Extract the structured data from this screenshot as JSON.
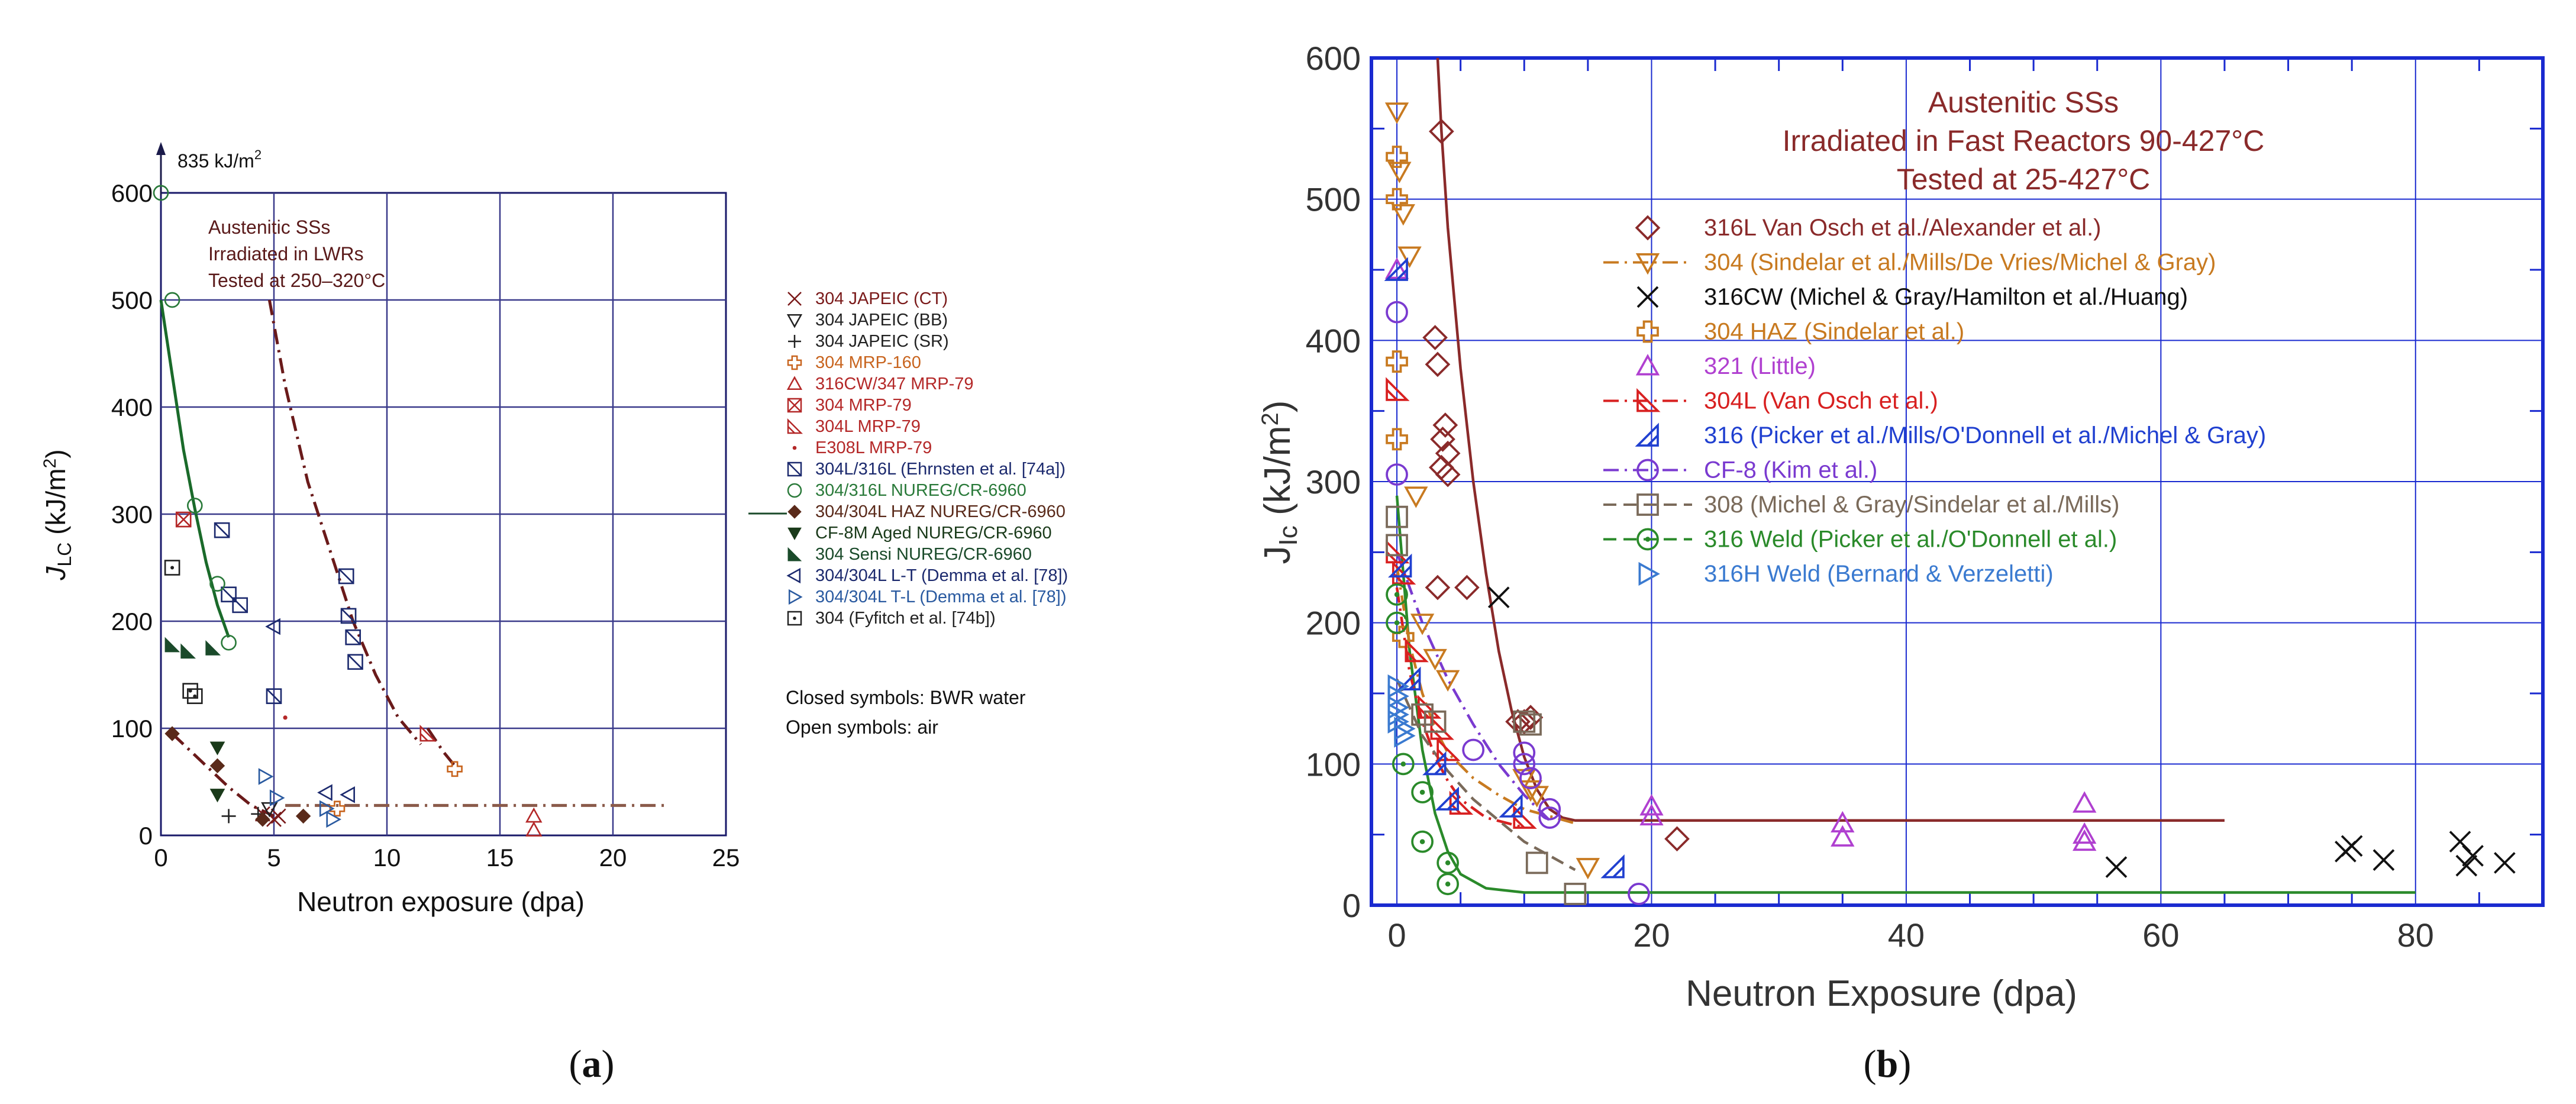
{
  "chart_data": [
    {
      "type": "scatter",
      "panel_label": "(a)",
      "panel_letter": "a",
      "xlabel": "Neutron exposure (dpa)",
      "ylabel_main": "J",
      "ylabel_sub": "LC",
      "ylabel_units": "(kJ/m",
      "ylabel_sup": "2",
      "ylabel_close": ")",
      "xlim": [
        0,
        25
      ],
      "ylim": [
        0,
        600
      ],
      "xticks": [
        0,
        5,
        10,
        15,
        20,
        25
      ],
      "yticks": [
        0,
        100,
        200,
        300,
        400,
        500,
        600
      ],
      "offscale_label": "835 kJ/m",
      "offscale_sup": "2",
      "annotation": [
        "Austenitic SSs",
        "Irradiated in LWRs",
        "Tested at 250–320°C"
      ],
      "notes": [
        "Closed symbols: BWR water",
        "Open symbols: air"
      ],
      "legend": [
        {
          "label": "304 JAPEIC (CT)",
          "color": "#7a1a1a",
          "marker": "x"
        },
        {
          "label": "304 JAPEIC (BB)",
          "color": "#222222",
          "marker": "tri-down"
        },
        {
          "label": "304 JAPEIC (SR)",
          "color": "#222222",
          "marker": "plus"
        },
        {
          "label": "304 MRP-160",
          "color": "#c8641e",
          "marker": "cross-open"
        },
        {
          "label": "316CW/347 MRP-79",
          "color": "#b42828",
          "marker": "tri-up"
        },
        {
          "label": "304 MRP-79",
          "color": "#b42828",
          "marker": "box-x"
        },
        {
          "label": "304L MRP-79",
          "color": "#b42828",
          "marker": "half-tri"
        },
        {
          "label": "E308L MRP-79",
          "color": "#b42828",
          "marker": "dot"
        },
        {
          "label": "304L/316L (Ehrnsten et al. [74a])",
          "color": "#1c2a6e",
          "marker": "box-slash"
        },
        {
          "label": "304/316L NUREG/CR-6960",
          "color": "#2a7a3a",
          "marker": "circle"
        },
        {
          "label": "304/304L HAZ NUREG/CR-6960",
          "color": "#5a2a1a",
          "marker": "diamond-fill"
        },
        {
          "label": "CF-8M Aged NUREG/CR-6960",
          "color": "#1a3a1a",
          "marker": "tri-down-fill"
        },
        {
          "label": "304 Sensi NUREG/CR-6960",
          "color": "#1a4a2a",
          "marker": "corner-fill"
        },
        {
          "label": "304/304L L-T (Demma et al. [78])",
          "color": "#1c2a6e",
          "marker": "tri-left"
        },
        {
          "label": "304/304L T-L (Demma et al. [78])",
          "color": "#2a5aa0",
          "marker": "tri-right"
        },
        {
          "label": "304 (Fyfitch et al. [74b])",
          "color": "#222222",
          "marker": "box-dot"
        }
      ],
      "series": [
        {
          "name": "304 JAPEIC (CT)",
          "x": [
            4.5,
            5.0,
            5.2
          ],
          "y": [
            20,
            15,
            18
          ]
        },
        {
          "name": "304 JAPEIC (BB)",
          "x": [
            4.8
          ],
          "y": [
            25
          ]
        },
        {
          "name": "304 JAPEIC (SR)",
          "x": [
            3.0,
            4.3
          ],
          "y": [
            18,
            20
          ]
        },
        {
          "name": "304 MRP-160",
          "x": [
            7.8,
            13.0
          ],
          "y": [
            25,
            62
          ]
        },
        {
          "name": "316CW/347 MRP-79",
          "x": [
            16.5,
            16.5
          ],
          "y": [
            18,
            5
          ]
        },
        {
          "name": "304 MRP-79",
          "x": [
            1.0
          ],
          "y": [
            295
          ]
        },
        {
          "name": "304L MRP-79",
          "x": [
            11.8
          ],
          "y": [
            95
          ]
        },
        {
          "name": "E308L MRP-79",
          "x": [
            5.5
          ],
          "y": [
            110
          ]
        },
        {
          "name": "304L/316L (Ehrnsten et al. [74a])",
          "x": [
            2.7,
            3.0,
            3.5,
            5.0,
            8.2,
            8.3,
            8.5,
            8.6
          ],
          "y": [
            285,
            225,
            215,
            130,
            242,
            205,
            185,
            162
          ]
        },
        {
          "name": "304/316L NUREG/CR-6960",
          "x": [
            0.0,
            0.5,
            1.5,
            2.5,
            3.0
          ],
          "y": [
            600,
            500,
            308,
            235,
            180
          ]
        },
        {
          "name": "304/304L HAZ NUREG/CR-6960",
          "x": [
            0.5,
            2.5,
            4.5,
            6.3
          ],
          "y": [
            95,
            65,
            15,
            18
          ]
        },
        {
          "name": "CF-8M Aged NUREG/CR-6960",
          "x": [
            2.5,
            2.5
          ],
          "y": [
            82,
            38
          ]
        },
        {
          "name": "304 Sensi NUREG/CR-6960",
          "x": [
            0.5,
            1.2,
            2.3
          ],
          "y": [
            178,
            172,
            175
          ]
        },
        {
          "name": "304/304L L-T (Demma et al. [78])",
          "x": [
            5.0,
            7.3,
            8.3
          ],
          "y": [
            195,
            40,
            38
          ]
        },
        {
          "name": "304/304L T-L (Demma et al. [78])",
          "x": [
            4.6,
            5.1,
            7.3,
            7.6
          ],
          "y": [
            55,
            35,
            25,
            15
          ]
        },
        {
          "name": "304 (Fyfitch et al. [74b])",
          "x": [
            0.5,
            1.3,
            1.5
          ],
          "y": [
            250,
            135,
            130
          ]
        }
      ]
    },
    {
      "type": "scatter",
      "panel_label": "(b)",
      "panel_letter": "b",
      "xlabel": "Neutron Exposure (dpa)",
      "ylabel_main": "J",
      "ylabel_sub": "Ic",
      "ylabel_units": "(kJ/m",
      "ylabel_sup": "2",
      "ylabel_close": ")",
      "xlim": [
        -2,
        90
      ],
      "ylim": [
        0,
        600
      ],
      "xticks": [
        0,
        20,
        40,
        60,
        80
      ],
      "yticks": [
        0,
        100,
        200,
        300,
        400,
        500,
        600
      ],
      "title": [
        "Austenitic SSs",
        "Irradiated in Fast Reactors 90-427°C",
        "Tested at 25-427°C"
      ],
      "legend": [
        {
          "label": "316L Van Osch et al./Alexander et al.)",
          "color": "#8a2a2a",
          "marker": "diamond",
          "line": "none"
        },
        {
          "label": "304 (Sindelar et al./Mills/De Vries/Michel & Gray)",
          "color": "#c87a20",
          "marker": "tri-down",
          "line": "dashdot"
        },
        {
          "label": "316CW (Michel & Gray/Hamilton et al./Huang)",
          "color": "#111111",
          "marker": "x",
          "line": "none"
        },
        {
          "label": "304 HAZ (Sindelar et al.)",
          "color": "#c87a20",
          "marker": "plus-open",
          "line": "none"
        },
        {
          "label": "321 (Little)",
          "color": "#b040d0",
          "marker": "tri-up",
          "line": "none"
        },
        {
          "label": "304L (Van Osch et al.)",
          "color": "#d82020",
          "marker": "corner",
          "line": "solid-dot"
        },
        {
          "label": "316 (Picker et al./Mills/O'Donnell et al./Michel & Gray)",
          "color": "#2040d0",
          "marker": "corner-right",
          "line": "none"
        },
        {
          "label": "CF-8 (Kim et al.)",
          "color": "#7a3ad0",
          "marker": "circle",
          "line": "dashdot"
        },
        {
          "label": "308 (Michel & Gray/Sindelar et al./Mills)",
          "color": "#7a6a5a",
          "marker": "square",
          "line": "dash"
        },
        {
          "label": "316 Weld (Picker et al./O'Donnell et al.)",
          "color": "#2a8a2a",
          "marker": "circle-dot",
          "line": "dash"
        },
        {
          "label": "316H Weld (Bernard & Verzeletti)",
          "color": "#3a7ad0",
          "marker": "tri-right",
          "line": "none"
        }
      ],
      "series": [
        {
          "name": "316L",
          "x": [
            3.5,
            3.0,
            3.2,
            3.8,
            3.6,
            4.0,
            3.5,
            4.0,
            3.2,
            5.5,
            10,
            9.5,
            10.5,
            22
          ],
          "y": [
            548,
            402,
            383,
            340,
            330,
            320,
            310,
            305,
            225,
            225,
            130,
            130,
            133,
            47
          ]
        },
        {
          "name": "304",
          "x": [
            0,
            0.2,
            0.5,
            1.0,
            1.5,
            2,
            3,
            4,
            10,
            10.5,
            11,
            15
          ],
          "y": [
            562,
            520,
            490,
            460,
            290,
            200,
            175,
            160,
            90,
            82,
            78,
            27
          ]
        },
        {
          "name": "316CW",
          "x": [
            8,
            56.5,
            74.5,
            75,
            77.5,
            83.5,
            84,
            84.5,
            87
          ],
          "y": [
            218,
            27,
            38,
            42,
            32,
            45,
            28,
            35,
            30
          ]
        },
        {
          "name": "304 HAZ",
          "x": [
            0,
            0,
            0,
            0,
            0.5
          ],
          "y": [
            530,
            500,
            385,
            330,
            190
          ]
        },
        {
          "name": "321",
          "x": [
            0,
            20,
            20,
            35,
            35,
            54,
            54,
            54
          ],
          "y": [
            450,
            70,
            63,
            58,
            48,
            72,
            50,
            45
          ]
        },
        {
          "name": "304L",
          "x": [
            0,
            0,
            0.5,
            1.5,
            2.5,
            3.5,
            4,
            5,
            10
          ],
          "y": [
            365,
            250,
            235,
            180,
            140,
            125,
            110,
            72,
            62
          ]
        },
        {
          "name": "316",
          "x": [
            0,
            0.3,
            1.0,
            3.0,
            4.0,
            9.0,
            17.0
          ],
          "y": [
            450,
            240,
            160,
            100,
            75,
            70,
            27
          ]
        },
        {
          "name": "CF-8",
          "x": [
            0,
            0,
            6.0,
            10,
            10,
            10.5,
            12,
            12,
            19
          ],
          "y": [
            420,
            305,
            110,
            108,
            100,
            90,
            68,
            62,
            8
          ]
        },
        {
          "name": "308",
          "x": [
            0,
            0,
            2,
            3,
            10,
            10.5,
            11,
            14
          ],
          "y": [
            275,
            255,
            135,
            130,
            130,
            128,
            30,
            8
          ]
        },
        {
          "name": "316 Weld",
          "x": [
            0,
            0,
            0.5,
            2,
            2,
            4,
            4
          ],
          "y": [
            220,
            200,
            100,
            80,
            45,
            30,
            15
          ]
        },
        {
          "name": "316H Weld",
          "x": [
            0,
            0,
            0,
            0,
            0,
            0.5,
            0.5
          ],
          "y": [
            155,
            148,
            140,
            135,
            130,
            125,
            120
          ]
        }
      ],
      "fit_lines": [
        {
          "name": "316L fit",
          "color": "#8a2a2a",
          "style": "solid",
          "x": [
            3.2,
            3.5,
            4,
            5,
            6,
            7,
            8,
            9,
            10,
            11,
            12,
            13,
            14,
            65
          ],
          "y": [
            600,
            548,
            480,
            380,
            300,
            235,
            180,
            138,
            105,
            82,
            68,
            62,
            60,
            60
          ]
        },
        {
          "name": "316 weld fit",
          "color": "#2a8a2a",
          "style": "solid",
          "x": [
            0,
            1,
            2,
            3,
            4,
            5,
            7,
            10,
            20,
            80
          ],
          "y": [
            290,
            180,
            110,
            65,
            38,
            22,
            12,
            9,
            9,
            9
          ]
        },
        {
          "name": "304 fit",
          "color": "#c87a20",
          "style": "dashdot",
          "x": [
            0,
            1,
            2,
            3,
            4,
            6,
            8,
            10,
            14
          ],
          "y": [
            240,
            185,
            150,
            125,
            108,
            90,
            78,
            68,
            58
          ]
        },
        {
          "name": "CF-8 fit",
          "color": "#7a3ad0",
          "style": "dashdot",
          "x": [
            0,
            2,
            4,
            6,
            8,
            10,
            12
          ],
          "y": [
            250,
            200,
            160,
            128,
            100,
            78,
            60
          ]
        },
        {
          "name": "304L fit",
          "color": "#d82020",
          "style": "dashdot",
          "x": [
            0,
            1,
            2,
            3,
            4,
            5,
            7,
            10
          ],
          "y": [
            225,
            165,
            130,
            105,
            88,
            75,
            62,
            55
          ]
        },
        {
          "name": "308 fit",
          "color": "#7a6a5a",
          "style": "dash",
          "x": [
            0,
            2,
            4,
            6,
            8,
            10,
            14
          ],
          "y": [
            160,
            120,
            95,
            75,
            60,
            45,
            25
          ]
        }
      ]
    }
  ],
  "panel_a_curves": [
    {
      "name": "Ehrnsten trend",
      "color": "#6a1a1a",
      "style": "dashdot",
      "x": [
        4.8,
        5.5,
        6.5,
        7.5,
        8.5,
        9.5,
        10.5,
        11.5
      ],
      "y": [
        500,
        420,
        330,
        265,
        200,
        150,
        110,
        85
      ]
    },
    {
      "name": "MRP trend",
      "color": "#6a1a1a",
      "style": "dashdot",
      "x": [
        11.8,
        12.5,
        13.0
      ],
      "y": [
        100,
        78,
        65
      ]
    },
    {
      "name": "NUREG trend",
      "color": "#1a6a2a",
      "style": "solid",
      "x": [
        0,
        0.5,
        1.0,
        1.5,
        2.0,
        2.5,
        3.0
      ],
      "y": [
        500,
        430,
        360,
        305,
        255,
        215,
        185
      ]
    },
    {
      "name": "BWR trend",
      "color": "#6a1a1a",
      "style": "dashdot",
      "x": [
        0.5,
        1.0,
        2.0,
        3.0,
        4.0,
        5.0
      ],
      "y": [
        95,
        85,
        65,
        45,
        28,
        18
      ]
    },
    {
      "name": "saturation",
      "color": "#8a5a4a",
      "style": "dashdot",
      "x": [
        5.5,
        22.5
      ],
      "y": [
        28,
        28
      ]
    }
  ]
}
